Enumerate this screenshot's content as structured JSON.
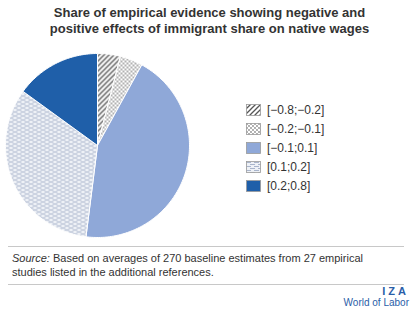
{
  "chart_data": {
    "type": "pie",
    "title": "Share of empirical evidence showing negative and positive effects of immigrant share on native wages",
    "categories": [
      "[−0.8;−0.2]",
      "[−0.2;−0.1]",
      "[−0.1;0.1]",
      "[0.1;0.2]",
      "[0.2;0.8]"
    ],
    "values": [
      4,
      4,
      44,
      33,
      15
    ],
    "colors": [
      "#555555",
      "#8c8c8c",
      "#8fa8d8",
      "#a9b5cc",
      "#1f5fa9"
    ],
    "legend": "right",
    "caption": "Source: Based on averages of 270 baseline estimates from 27 empirical studies listed in the additional references.",
    "logo": [
      "IZA",
      "World of Labor"
    ]
  }
}
